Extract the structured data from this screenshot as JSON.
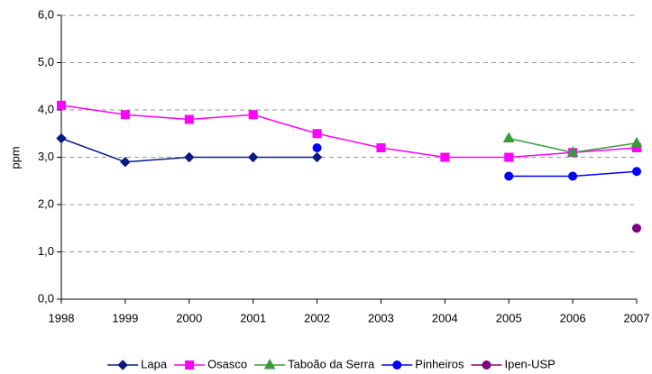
{
  "chart_data": {
    "type": "line",
    "y_label": "ppm",
    "categories": [
      "1998",
      "1999",
      "2000",
      "2001",
      "2002",
      "2003",
      "2004",
      "2005",
      "2006",
      "2007"
    ],
    "ylim": [
      0,
      6
    ],
    "yticks": [
      {
        "value": 0,
        "label": "0,0"
      },
      {
        "value": 1,
        "label": "1,0"
      },
      {
        "value": 2,
        "label": "2,0"
      },
      {
        "value": 3,
        "label": "3,0"
      },
      {
        "value": 4,
        "label": "4,0"
      },
      {
        "value": 5,
        "label": "5,0"
      },
      {
        "value": 6,
        "label": "6,0"
      }
    ],
    "grid": true,
    "legend": "bottom",
    "series": [
      {
        "name": "Lapa",
        "color": "#0a1a80",
        "marker": "diamond",
        "values": [
          3.4,
          2.9,
          3.0,
          3.0,
          3.0,
          null,
          null,
          null,
          null,
          null
        ]
      },
      {
        "name": "Osasco",
        "color": "#ff00ff",
        "marker": "square",
        "values": [
          4.1,
          3.9,
          3.8,
          3.9,
          3.5,
          3.2,
          3.0,
          3.0,
          3.1,
          3.2
        ]
      },
      {
        "name": "Taboão da Serra",
        "color": "#3a9a3a",
        "marker": "triangle",
        "values": [
          null,
          null,
          null,
          null,
          null,
          null,
          null,
          3.4,
          3.1,
          3.3
        ]
      },
      {
        "name": "Pinheiros",
        "color": "#0000ff",
        "marker": "circle",
        "values": [
          null,
          null,
          null,
          null,
          3.2,
          null,
          null,
          2.6,
          2.6,
          2.7
        ]
      },
      {
        "name": "Ipen-USP",
        "color": "#800080",
        "marker": "circle",
        "values": [
          null,
          null,
          null,
          null,
          null,
          null,
          null,
          null,
          null,
          1.5
        ]
      }
    ]
  }
}
